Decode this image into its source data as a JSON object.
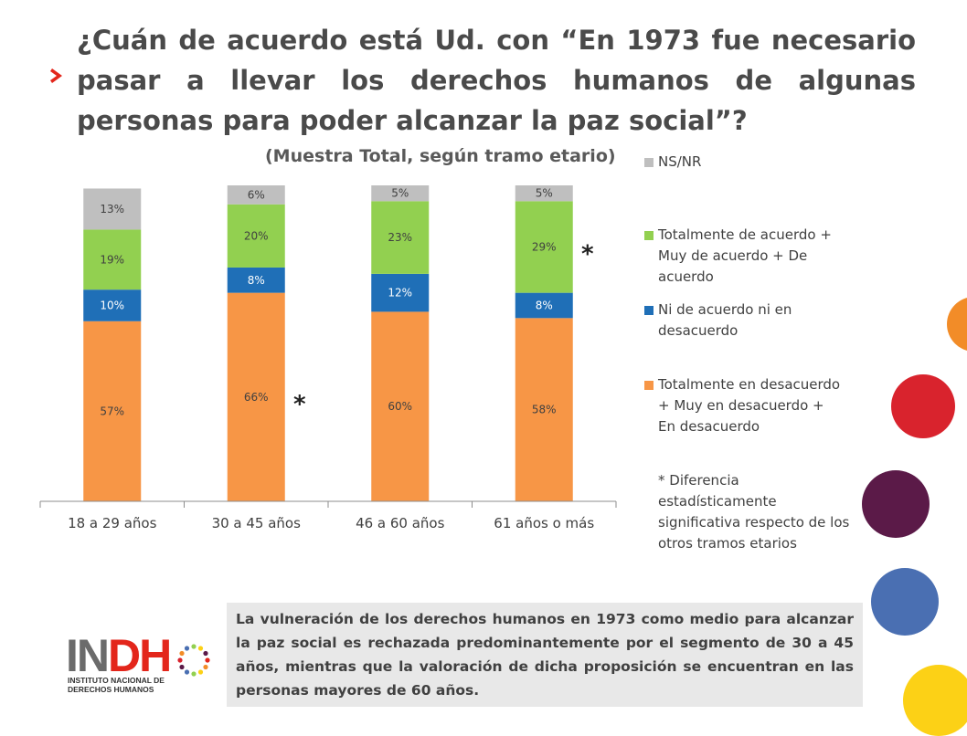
{
  "title": "¿Cuán de acuerdo está Ud. con “En 1973 fue necesario pasar a llevar los derechos humanos de algunas personas para poder alcanzar la paz social”?",
  "subtitle": "(Muestra Total, según tramo etario)",
  "chart_data": {
    "type": "bar",
    "stacked": true,
    "categories": [
      "18 a 29 años",
      "30 a 45 años",
      "46 a 60 años",
      "61 años o más"
    ],
    "series": [
      {
        "name": "Totalmente en desacuerdo + Muy en desacuerdo + En desacuerdo",
        "color": "#f79646",
        "values": [
          57,
          66,
          60,
          58
        ],
        "labels": [
          "57%",
          "66%",
          "60%",
          "58%"
        ]
      },
      {
        "name": "Ni de acuerdo ni en desacuerdo",
        "color": "#1f6fb7",
        "values": [
          10,
          8,
          12,
          8
        ],
        "labels": [
          "10%",
          "8%",
          "12%",
          "8%"
        ]
      },
      {
        "name": "Totalmente de acuerdo + Muy de acuerdo + De acuerdo",
        "color": "#92d050",
        "values": [
          19,
          20,
          23,
          29
        ],
        "labels": [
          "19%",
          "20%",
          "23%",
          "29%"
        ]
      },
      {
        "name": "NS/NR",
        "color": "#bfbfbf",
        "values": [
          13,
          6,
          5,
          5
        ],
        "labels": [
          "13%",
          "6%",
          "5%",
          "5%"
        ]
      }
    ],
    "ylim": [
      0,
      100
    ],
    "grid": false,
    "legend": "right",
    "annotations": [
      {
        "category": "30 a 45 años",
        "series": "Totalmente en desacuerdo + Muy en desacuerdo + En desacuerdo",
        "text": "*"
      },
      {
        "category": "61 años o más",
        "series": "Totalmente de acuerdo + Muy de acuerdo + De acuerdo",
        "text": "*"
      }
    ]
  },
  "legend": {
    "items": [
      {
        "label": "NS/NR",
        "color": "#bfbfbf"
      },
      {
        "label": "Totalmente de acuerdo + Muy de acuerdo + De acuerdo",
        "color": "#92d050"
      },
      {
        "label": "Ni de acuerdo ni en desacuerdo",
        "color": "#1f6fb7"
      },
      {
        "label": "Totalmente en desacuerdo + Muy en desacuerdo + En desacuerdo",
        "color": "#f79646"
      }
    ]
  },
  "note": "* Diferencia estadísticamente significativa respecto de los otros tramos etarios",
  "summary": "La vulneración de los derechos humanos en 1973 como medio para alcanzar la paz social es rechazada predominantemente por el segmento de 30 a 45 años, mientras que la valoración de dicha proposición se encuentran en las personas mayores de 60 años.",
  "logo": {
    "word_a": "IN",
    "word_b": "DH",
    "line1": "INSTITUTO NACIONAL DE",
    "line2": "DERECHOS HUMANOS"
  },
  "colors": {
    "accent_red": "#e3261b",
    "circle_orange": "#f28c28",
    "circle_red": "#d9232d",
    "circle_purple": "#5b1a48",
    "circle_blue": "#4a6fb2",
    "circle_yellow": "#fcd116"
  }
}
